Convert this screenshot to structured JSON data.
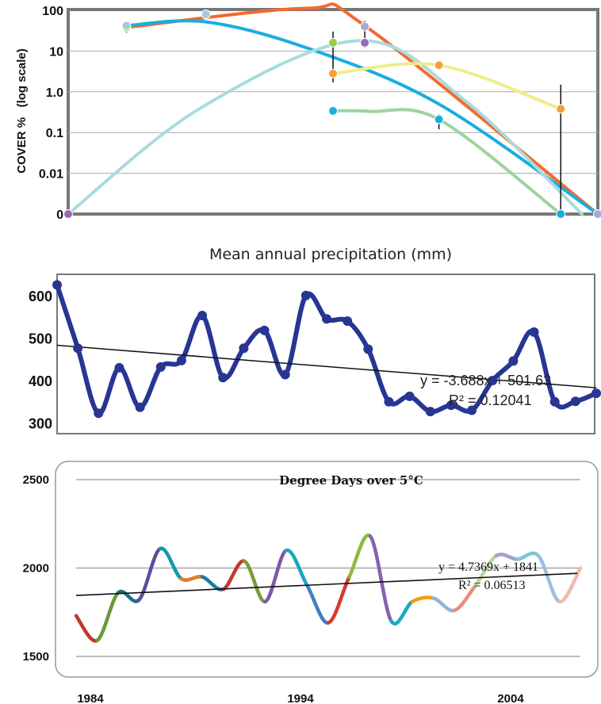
{
  "chart_data": [
    {
      "type": "line",
      "ylabel": "COVER %   (log scale)",
      "yscale": "log",
      "yticks": [
        "100",
        "10",
        "1.0",
        "0.1",
        "0.01",
        "0"
      ],
      "grid": "horizontal",
      "series": [
        {
          "color": "#f26a2e",
          "points": [
            [
              0.11,
              38
            ],
            [
              0.45,
              112
            ],
            [
              0.56,
              42
            ],
            [
              1.0,
              0.001
            ]
          ]
        },
        {
          "color": "#19aee0",
          "points": [
            [
              0.11,
              42
            ],
            [
              0.26,
              52
            ],
            [
              0.45,
              12
            ],
            [
              0.7,
              0.5
            ],
            [
              1.0,
              0.001
            ]
          ]
        },
        {
          "color": "#a8dcde",
          "points": [
            [
              0.0,
              0.001
            ],
            [
              0.25,
              0.4
            ],
            [
              0.55,
              18
            ],
            [
              0.75,
              0.6
            ],
            [
              0.97,
              0.001
            ]
          ]
        },
        {
          "color": "#f0ec8a",
          "points": [
            [
              0.5,
              2.8
            ],
            [
              0.7,
              4.5
            ],
            [
              0.93,
              0.38
            ]
          ]
        },
        {
          "color": "#9dd3a0",
          "points": [
            [
              0.5,
              0.34
            ],
            [
              0.57,
              0.33
            ],
            [
              0.7,
              0.21
            ],
            [
              0.93,
              0.001
            ]
          ]
        }
      ],
      "markers": [
        {
          "x": 0.11,
          "y": 38,
          "color": "#9ccc4a"
        },
        {
          "x": 0.11,
          "y": 42,
          "color": "#a8c8e0"
        },
        {
          "x": 0.26,
          "y": 80,
          "color": "#a8c8e0"
        },
        {
          "x": 0.5,
          "y": 16,
          "color": "#9ccc4a"
        },
        {
          "x": 0.5,
          "y": 2.8,
          "color": "#f5a03a"
        },
        {
          "x": 0.5,
          "y": 0.34,
          "color": "#19aee0"
        },
        {
          "x": 0.56,
          "y": 40,
          "color": "#a8a8d8"
        },
        {
          "x": 0.56,
          "y": 16,
          "color": "#9a6ab8"
        },
        {
          "x": 0.7,
          "y": 4.5,
          "color": "#f5a03a"
        },
        {
          "x": 0.7,
          "y": 0.21,
          "color": "#19aee0"
        },
        {
          "x": 0.93,
          "y": 0.38,
          "color": "#f5a03a"
        },
        {
          "x": 0.93,
          "y": 0.001,
          "color": "#19aee0"
        },
        {
          "x": 0.0,
          "y": 0.001,
          "color": "#9a6ab8"
        },
        {
          "x": 1.0,
          "y": 0.001,
          "color": "#a8a8d8"
        }
      ],
      "error_bars": [
        {
          "x": 0.11,
          "low": 28,
          "high": 48
        },
        {
          "x": 0.5,
          "low": 1.7,
          "high": 30
        },
        {
          "x": 0.56,
          "low": 12,
          "high": 55
        },
        {
          "x": 0.7,
          "low": 0.12,
          "high": 0.28
        },
        {
          "x": 0.93,
          "low": 0.001,
          "high": 1.5
        }
      ]
    },
    {
      "type": "line",
      "title": "Mean annual precipitation (mm)",
      "yticks": [
        600,
        500,
        400,
        300
      ],
      "ylim": [
        275,
        650
      ],
      "x": [
        1982,
        1983,
        1984,
        1985,
        1986,
        1987,
        1988,
        1989,
        1990,
        1991,
        1992,
        1993,
        1994,
        1995,
        1996,
        1997,
        1998,
        1999,
        2000,
        2001,
        2002,
        2003,
        2004,
        2005,
        2006,
        2007,
        2008
      ],
      "series": [
        {
          "name": "",
          "values": [
            625,
            476,
            323,
            430,
            337,
            432,
            447,
            553,
            407,
            476,
            518,
            414,
            600,
            545,
            540,
            474,
            350,
            363,
            327,
            342,
            330,
            400,
            446,
            514,
            350,
            351,
            370
          ]
        }
      ],
      "trendline": {
        "from": [
          1982,
          483
        ],
        "to": [
          2008,
          383
        ],
        "equation": "y = -3.688x + 501.63",
        "r2": "R² = 0.12041"
      }
    },
    {
      "type": "line",
      "title": "Degree Days over 5°C",
      "yticks": [
        2500,
        2000,
        1500
      ],
      "ylim": [
        1500,
        2500
      ],
      "xticks": [
        "1984",
        "1994",
        "2004"
      ],
      "x": [
        1984,
        1985,
        1986,
        1987,
        1988,
        1989,
        1990,
        1991,
        1992,
        1993,
        1994,
        1995,
        1996,
        1997,
        1998,
        1999,
        2000,
        2001,
        2002,
        2003,
        2004,
        2005,
        2006,
        2007,
        2008
      ],
      "series": [
        {
          "name": "",
          "values": [
            1730,
            1590,
            1860,
            1820,
            2110,
            1940,
            1950,
            1880,
            2040,
            1810,
            2100,
            1900,
            1690,
            1950,
            2180,
            1700,
            1810,
            1830,
            1760,
            1900,
            2070,
            2050,
            2070,
            1810,
            2000
          ]
        }
      ],
      "segment_colors": [
        "#c0392b",
        "#6a9a3a",
        "#1a6f86",
        "#5a4ea0",
        "#1596ae",
        "#e17d28",
        "#1a7fa0",
        "#c0392b",
        "#7a9a3a",
        "#7d58a8",
        "#1aa6c0",
        "#3f7fc0",
        "#d33a2f",
        "#8cbb3c",
        "#8660b0",
        "#1aa8c4",
        "#f39c12",
        "#95b3d8",
        "#e88d80",
        "#b7d89c",
        "#a0a0cc",
        "#7ec5d5",
        "#9fbde0",
        "#f2b8a8",
        "#c6e0b3"
      ],
      "trendline": {
        "from": [
          1984,
          1845
        ],
        "to": [
          2008,
          1970
        ],
        "equation": "y = 4.7369x + 1841",
        "r2": "R² = 0.06513"
      }
    }
  ]
}
